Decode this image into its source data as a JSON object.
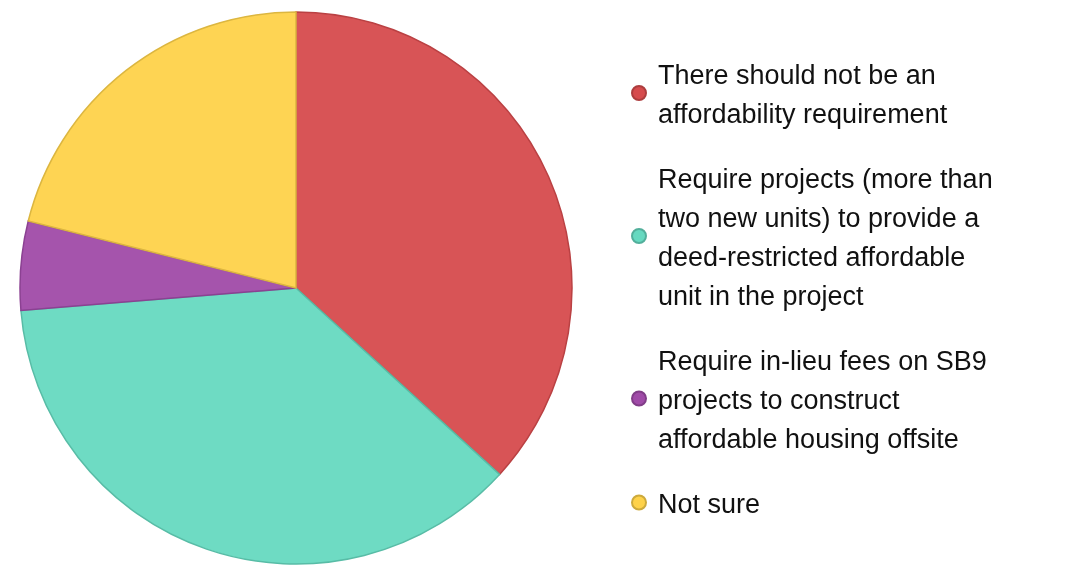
{
  "chart_data": {
    "type": "pie",
    "categories": [
      "There should not be an affordability requirement",
      "Require projects (more than two new units) to provide a deed-restricted affordable unit in the project",
      "Require in-lieu fees on SB9 projects to construct affordable housing offsite",
      "Not sure"
    ],
    "values": [
      36.8,
      36.9,
      5.2,
      21.1
    ],
    "colors": [
      "#d64b4d",
      "#66d9c0",
      "#a04ba8",
      "#fed24a"
    ],
    "legend": "right"
  }
}
